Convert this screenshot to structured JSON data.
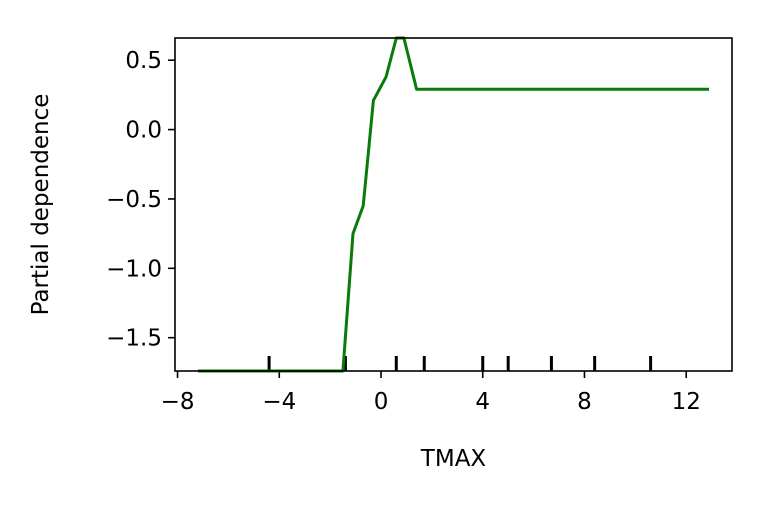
{
  "chart_data": {
    "type": "line",
    "title": "",
    "xlabel": "TMAX",
    "ylabel": "Partial dependence",
    "xlim": [
      -8.1,
      13.8
    ],
    "ylim": [
      -1.74,
      0.66
    ],
    "xticks": [
      -8,
      -4,
      0,
      4,
      8,
      12
    ],
    "xtick_labels": [
      "−8",
      "−4",
      "0",
      "4",
      "8",
      "12"
    ],
    "yticks": [
      -1.5,
      -1.0,
      -0.5,
      0.0,
      0.5
    ],
    "ytick_labels": [
      "−1.5",
      "−1.0",
      "−0.5",
      "0.0",
      "0.5"
    ],
    "grid": false,
    "line_color": "#0a7a0a",
    "series": [
      {
        "x": [
          -7.2,
          -4.0,
          -1.5,
          -1.1,
          -0.7,
          -0.3,
          0.2,
          0.6,
          0.9,
          1.4,
          4.0,
          8.0,
          12.9
        ],
        "y": [
          -1.74,
          -1.74,
          -1.74,
          -0.75,
          -0.55,
          0.21,
          0.38,
          0.66,
          0.66,
          0.29,
          0.29,
          0.29,
          0.29
        ]
      }
    ],
    "rug_x": [
      -4.4,
      -1.4,
      0.6,
      1.7,
      4.0,
      5.0,
      6.7,
      8.4,
      10.6
    ]
  }
}
